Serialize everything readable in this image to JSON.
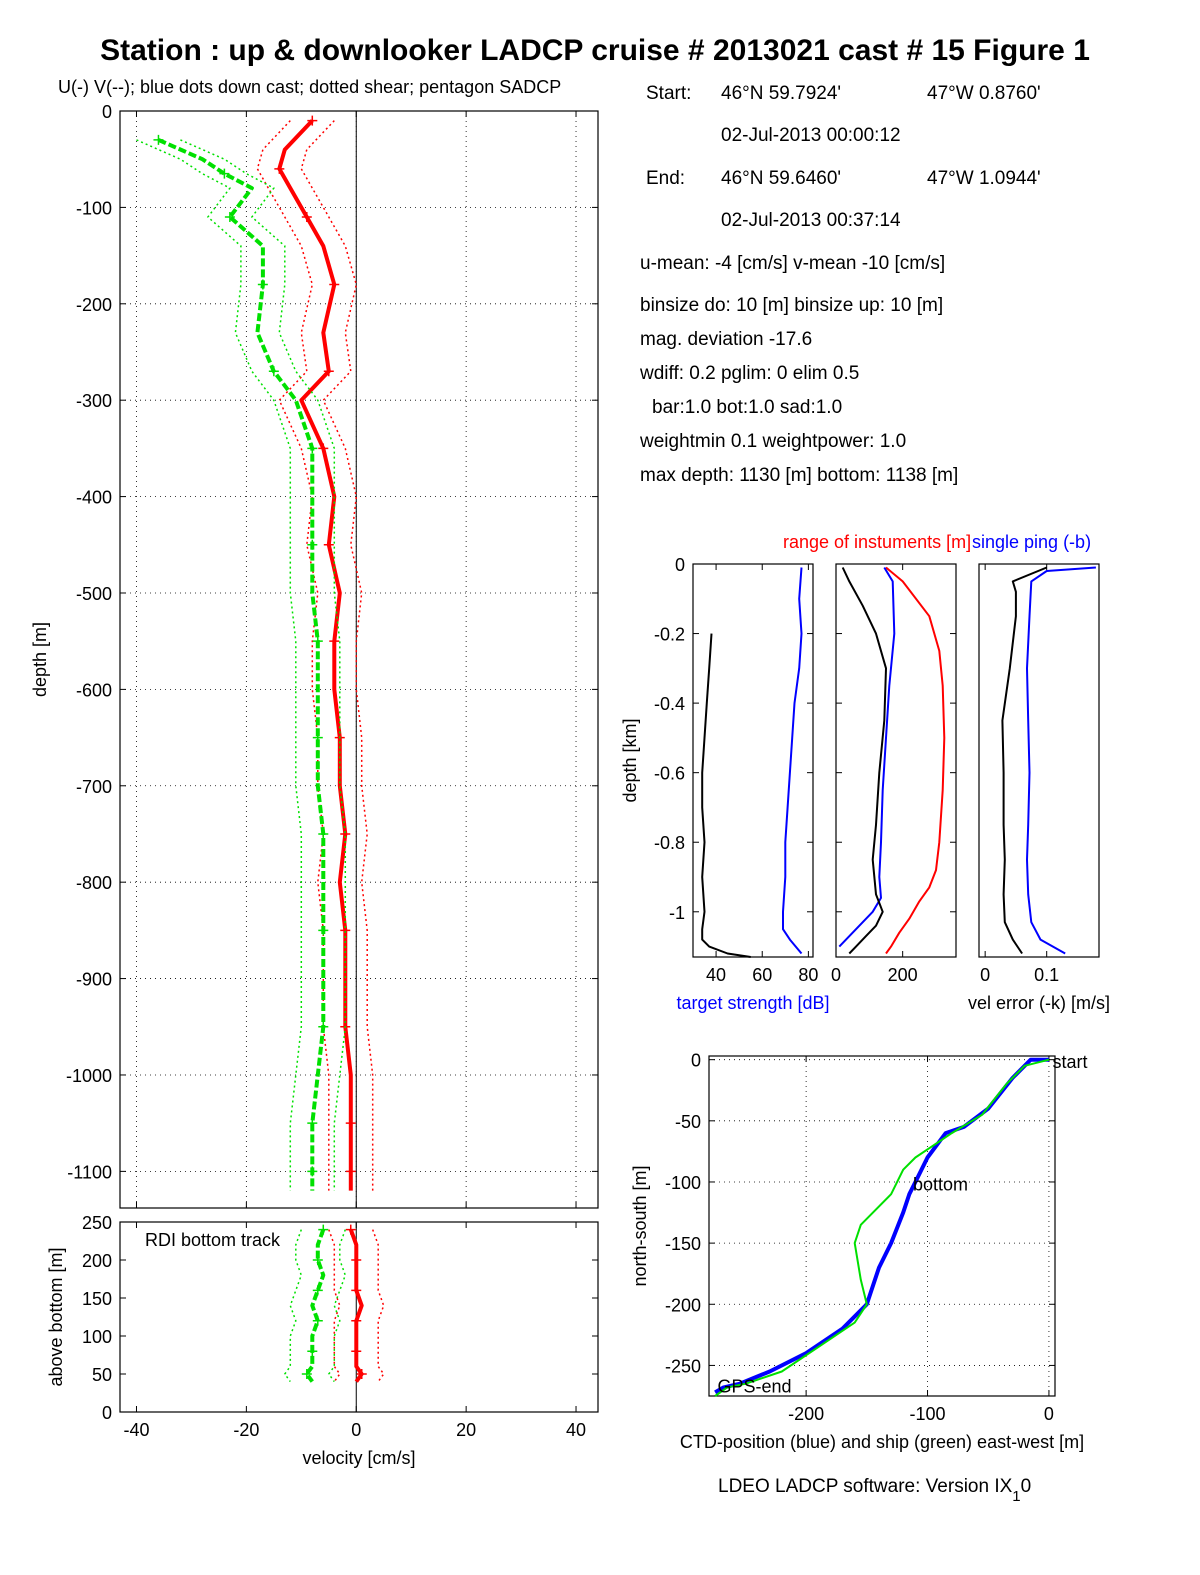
{
  "title": "Station : up & downlooker LADCP cruise # 2013021 cast # 15  Figure 1",
  "subtitle": "U(-) V(--); blue dots down cast; dotted shear; pentagon SADCP",
  "info": {
    "start_label": "Start:",
    "start_lat": "46°N 59.7924'",
    "start_lon": "47°W  0.8760'",
    "start_time": "02-Jul-2013 00:00:12",
    "end_label": "End:",
    "end_lat": "46°N 59.6460'",
    "end_lon": "47°W  1.0944'",
    "end_time": "02-Jul-2013 00:37:14",
    "means": "u-mean:  -4 [cm/s]    v-mean -10 [cm/s]",
    "binsize": "binsize do: 10 [m]  binsize up:  10 [m]",
    "magdev": "mag. deviation -17.6",
    "wdiff": "wdiff: 0.2  pglim: 0  elim 0.5",
    "bar": "bar:1.0 bot:1.0 sad:1.0",
    "weight": "weightmin 0.1  weightpower: 1.0",
    "depth": "max depth: 1130 [m]   bottom: 1138 [m]"
  },
  "footer": "LDEO LADCP software: Version IX",
  "footer_sub": "1",
  "footer_tail": "0",
  "colors": {
    "u": "#ff0000",
    "v": "#00e000",
    "blue": "#0000ff",
    "black": "#000000",
    "yellow": "#e6e600"
  },
  "chart_data": [
    {
      "type": "line",
      "name": "velocity-profile",
      "xlabel": "",
      "ylabel": "depth [m]",
      "xlim": [
        -43,
        44
      ],
      "ylim": [
        -1138,
        0
      ],
      "xticks": [
        -40,
        -20,
        0,
        20,
        40
      ],
      "yticks": [
        0,
        -100,
        -200,
        -300,
        -400,
        -500,
        -600,
        -700,
        -800,
        -900,
        -1000,
        -1100
      ],
      "ytick_labels": [
        "0",
        "-100",
        "-200",
        "-300",
        "-400",
        "-500",
        "-600",
        "-700",
        "-800",
        "-900",
        "-1000",
        "-1100"
      ],
      "grid": true,
      "series": [
        {
          "label": "U",
          "color": "#ff0000",
          "x": [
            -8,
            -13,
            -14,
            -12,
            -9,
            -6,
            -4,
            -6,
            -5,
            -10,
            -6,
            -4,
            -5,
            -3,
            -4,
            -4,
            -3,
            -3,
            -2,
            -3,
            -2,
            -2,
            -2,
            -1,
            -1,
            -1,
            -1,
            -1
          ],
          "y": [
            -10,
            -40,
            -60,
            -80,
            -110,
            -140,
            -180,
            -230,
            -270,
            -300,
            -350,
            -400,
            -450,
            -500,
            -550,
            -600,
            -650,
            -700,
            -750,
            -800,
            -850,
            -900,
            -950,
            -1000,
            -1050,
            -1080,
            -1100,
            -1120
          ]
        },
        {
          "label": "V",
          "color": "#00e000",
          "x": [
            -36,
            -28,
            -24,
            -19,
            -23,
            -17,
            -17,
            -18,
            -15,
            -11,
            -8,
            -8,
            -8,
            -8,
            -7,
            -7,
            -7,
            -7,
            -6,
            -6,
            -6,
            -6,
            -6,
            -7,
            -8,
            -8,
            -8,
            -8
          ],
          "y": [
            -30,
            -50,
            -65,
            -80,
            -110,
            -140,
            -180,
            -230,
            -270,
            -300,
            -350,
            -400,
            -450,
            -500,
            -550,
            -600,
            -650,
            -700,
            -750,
            -800,
            -850,
            -900,
            -950,
            -1000,
            -1050,
            -1080,
            -1100,
            -1120
          ]
        }
      ]
    },
    {
      "type": "line",
      "name": "bottom-track",
      "annotation": "RDI bottom track",
      "xlabel": "velocity [cm/s]",
      "ylabel": "above bottom [m]",
      "xlim": [
        -43,
        44
      ],
      "ylim": [
        0,
        250
      ],
      "xticks": [
        -40,
        -20,
        0,
        20,
        40
      ],
      "yticks": [
        0,
        50,
        100,
        150,
        200,
        250
      ],
      "series": [
        {
          "label": "U",
          "color": "#ff0000",
          "x": [
            -1,
            0,
            0,
            0,
            0,
            1,
            0,
            0,
            0,
            0,
            1,
            0
          ],
          "y": [
            240,
            220,
            200,
            180,
            160,
            140,
            120,
            100,
            80,
            60,
            50,
            40
          ]
        },
        {
          "label": "V",
          "color": "#00e000",
          "x": [
            -6,
            -7,
            -7,
            -6,
            -7,
            -8,
            -7,
            -8,
            -8,
            -8,
            -9,
            -8
          ],
          "y": [
            240,
            220,
            200,
            180,
            160,
            140,
            120,
            100,
            80,
            60,
            50,
            40
          ]
        }
      ]
    },
    {
      "type": "line",
      "name": "target-strength",
      "xlabel": "target strength [dB]",
      "ylabel": "depth [km]",
      "xlim": [
        30,
        82
      ],
      "ylim": [
        -1.13,
        0
      ],
      "xticks": [
        40,
        60,
        80
      ],
      "yticks": [
        0,
        -0.2,
        -0.4,
        -0.6,
        -0.8,
        -1
      ],
      "ytick_labels": [
        "0",
        "-0.2",
        "-0.4",
        "-0.6",
        "-0.8",
        "-1"
      ],
      "series": [
        {
          "label": "blue",
          "color": "#0000ff",
          "x": [
            77,
            76,
            77,
            76,
            74,
            73,
            72,
            71,
            70,
            70,
            69,
            69,
            72,
            77
          ],
          "y": [
            -0.01,
            -0.1,
            -0.2,
            -0.3,
            -0.4,
            -0.5,
            -0.6,
            -0.7,
            -0.8,
            -0.9,
            -1.0,
            -1.05,
            -1.08,
            -1.12
          ]
        },
        {
          "label": "black",
          "color": "#000000",
          "x": [
            38,
            37,
            36,
            35,
            34,
            34,
            35,
            34,
            35,
            34,
            34,
            37,
            45,
            55
          ],
          "y": [
            -0.2,
            -0.3,
            -0.4,
            -0.5,
            -0.6,
            -0.7,
            -0.8,
            -0.9,
            -1.0,
            -1.05,
            -1.08,
            -1.1,
            -1.12,
            -1.13
          ]
        }
      ]
    },
    {
      "type": "line",
      "name": "range-of-instruments",
      "title_red": "range of instuments [m]",
      "title_blue": "single ping (-b)",
      "xlim": [
        0,
        360
      ],
      "ylim": [
        -1.13,
        0
      ],
      "xticks": [
        0,
        200
      ],
      "yticks": [
        0,
        -0.2,
        -0.4,
        -0.6,
        -0.8,
        -1
      ],
      "series": [
        {
          "label": "red",
          "color": "#ff0000",
          "x": [
            150,
            200,
            280,
            310,
            320,
            325,
            320,
            310,
            300,
            280,
            250,
            220,
            190,
            165,
            150
          ],
          "y": [
            -0.01,
            -0.05,
            -0.15,
            -0.25,
            -0.35,
            -0.5,
            -0.65,
            -0.8,
            -0.88,
            -0.93,
            -0.97,
            -1.02,
            -1.06,
            -1.1,
            -1.12
          ]
        },
        {
          "label": "blue",
          "color": "#0000ff",
          "x": [
            145,
            170,
            175,
            160,
            150,
            140,
            135,
            130,
            135,
            110,
            60,
            10
          ],
          "y": [
            -0.01,
            -0.05,
            -0.2,
            -0.35,
            -0.5,
            -0.65,
            -0.8,
            -0.9,
            -0.96,
            -1.0,
            -1.05,
            -1.1
          ]
        },
        {
          "label": "black",
          "color": "#000000",
          "x": [
            20,
            40,
            80,
            120,
            150,
            145,
            130,
            120,
            110,
            120,
            140,
            120,
            90,
            60,
            40
          ],
          "y": [
            -0.01,
            -0.05,
            -0.12,
            -0.2,
            -0.3,
            -0.45,
            -0.6,
            -0.75,
            -0.85,
            -0.95,
            -1.0,
            -1.04,
            -1.07,
            -1.1,
            -1.12
          ]
        }
      ]
    },
    {
      "type": "line",
      "name": "velocity-error",
      "xlabel": "vel error (-k) [m/s]",
      "xlim": [
        -0.01,
        0.185
      ],
      "ylim": [
        -1.13,
        0
      ],
      "xticks": [
        0,
        0.1
      ],
      "xtick_labels": [
        "0",
        "0.1"
      ],
      "series": [
        {
          "label": "black",
          "color": "#000000",
          "x": [
            0.1,
            0.045,
            0.05,
            0.05,
            0.04,
            0.028,
            0.03,
            0.03,
            0.032,
            0.03,
            0.032,
            0.045,
            0.06
          ],
          "y": [
            -0.01,
            -0.05,
            -0.08,
            -0.15,
            -0.3,
            -0.45,
            -0.6,
            -0.75,
            -0.85,
            -0.95,
            -1.03,
            -1.08,
            -1.12
          ]
        },
        {
          "label": "blue",
          "color": "#0000ff",
          "x": [
            0.18,
            0.1,
            0.075,
            0.072,
            0.068,
            0.07,
            0.072,
            0.07,
            0.068,
            0.07,
            0.075,
            0.09,
            0.13
          ],
          "y": [
            -0.01,
            -0.02,
            -0.05,
            -0.15,
            -0.3,
            -0.45,
            -0.6,
            -0.75,
            -0.85,
            -0.95,
            -1.03,
            -1.08,
            -1.12
          ]
        }
      ]
    },
    {
      "type": "line",
      "name": "position",
      "xlabel": "CTD-position (blue) and ship (green) east-west [m]",
      "ylabel": "north-south [m]",
      "xlim": [
        -280,
        5
      ],
      "ylim": [
        -275,
        3
      ],
      "xticks": [
        -200,
        -100,
        0
      ],
      "yticks": [
        0,
        -50,
        -100,
        -150,
        -200,
        -250
      ],
      "grid": true,
      "labels": {
        "start": "start",
        "bottom": "bottom",
        "end": "GPS-end"
      },
      "series": [
        {
          "label": "CTD",
          "color": "#0000ff",
          "x": [
            0,
            -15,
            -30,
            -50,
            -70,
            -85,
            -100,
            -110,
            -115,
            -120,
            -130,
            -140,
            -145,
            -150,
            -170,
            -200,
            -230,
            -255,
            -268,
            -275
          ],
          "y": [
            0,
            0,
            -15,
            -40,
            -55,
            -60,
            -80,
            -100,
            -110,
            -125,
            -150,
            -170,
            -185,
            -200,
            -220,
            -240,
            -255,
            -265,
            -268,
            -272
          ]
        },
        {
          "label": "ship",
          "color": "#00e000",
          "x": [
            0,
            -20,
            -35,
            -55,
            -80,
            -95,
            -110,
            -120,
            -130,
            -155,
            -160,
            -155,
            -150,
            -160,
            -190,
            -220,
            -250,
            -265,
            -275
          ],
          "y": [
            0,
            -5,
            -20,
            -45,
            -60,
            -70,
            -80,
            -90,
            -110,
            -135,
            -150,
            -180,
            -200,
            -215,
            -235,
            -255,
            -265,
            -268,
            -275
          ]
        }
      ]
    }
  ]
}
